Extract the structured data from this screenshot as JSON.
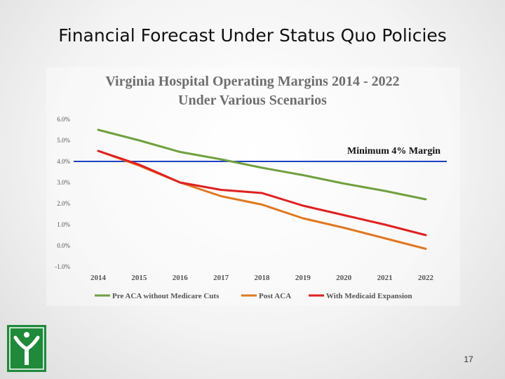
{
  "slide": {
    "title": "Financial Forecast Under Status Quo Policies",
    "page_number": "17"
  },
  "logo": {
    "icon": "y-figure-logo-icon",
    "color": "#1e8a3a"
  },
  "chart_data": {
    "type": "line",
    "title_line1": "Virginia Hospital Operating Margins 2014 - 2022",
    "title_line2": "Under Various Scenarios",
    "x": [
      "2014",
      "2015",
      "2016",
      "2017",
      "2018",
      "2019",
      "2020",
      "2021",
      "2022"
    ],
    "y_ticks": [
      "6.0%",
      "5.0%",
      "4.0%",
      "3.0%",
      "2.0%",
      "1.0%",
      "0.0%",
      "-1.0%"
    ],
    "ylim": [
      -1.0,
      6.0
    ],
    "xlabel": "",
    "ylabel": "",
    "series": [
      {
        "name": "Pre ACA without Medicare Cuts",
        "color": "#70a040",
        "values": [
          5.5,
          5.0,
          4.45,
          4.1,
          3.7,
          3.35,
          2.95,
          2.6,
          2.2
        ]
      },
      {
        "name": "Post ACA",
        "color": "#e07820",
        "values": [
          4.5,
          3.8,
          3.0,
          2.35,
          1.95,
          1.3,
          0.85,
          0.35,
          -0.15
        ]
      },
      {
        "name": "With Medicaid Expansion",
        "color": "#e02020",
        "values": [
          4.5,
          3.85,
          3.0,
          2.65,
          2.5,
          1.9,
          1.45,
          1.0,
          0.5
        ]
      }
    ],
    "reference_line": {
      "label": "Minimum 4% Margin",
      "value": 4.0,
      "color": "#2040c0"
    }
  }
}
